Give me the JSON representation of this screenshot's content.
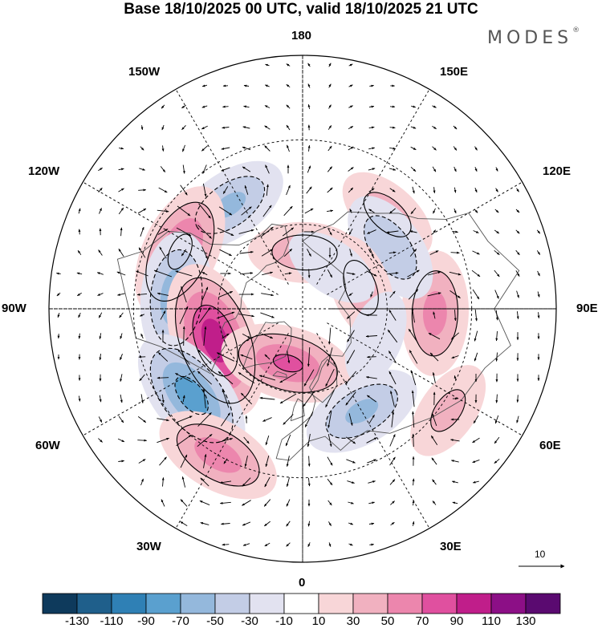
{
  "title": "Base 18/10/2025 00 UTC, valid 18/10/2025 21 UTC",
  "brand": {
    "name": "MODES",
    "mark": "®"
  },
  "longitude_labels": {
    "top": "180",
    "bottom": "0",
    "left": "90W",
    "right": "90E",
    "nw1": "150W",
    "nw2": "120W",
    "ne1": "150E",
    "ne2": "120E",
    "sw1": "60W",
    "sw2": "30W",
    "se1": "60E",
    "se2": "30E"
  },
  "vector_scale": {
    "label": "10"
  },
  "colorbar": {
    "colors": [
      "#0e3a5c",
      "#1f5f8b",
      "#2f80b5",
      "#5aa0cf",
      "#94b8dc",
      "#c3cde6",
      "#e2e2f0",
      "#ffffff",
      "#f8d6d8",
      "#f1b1c0",
      "#ec86ad",
      "#e0509f",
      "#c01e8a",
      "#8c0f86",
      "#5a0a70"
    ],
    "ticks": [
      "-130",
      "-110",
      "-90",
      "-70",
      "-50",
      "-30",
      "-10",
      "10",
      "30",
      "50",
      "70",
      "90",
      "110",
      "130"
    ]
  },
  "anomalies": [
    {
      "lon": 178,
      "lat": 70,
      "value": 45
    },
    {
      "lon": 138,
      "lat": 45,
      "value": 40
    },
    {
      "lon": -145,
      "lat": 45,
      "value": -55
    },
    {
      "lon": -115,
      "lat": 42,
      "value": 80
    },
    {
      "lon": -95,
      "lat": 45,
      "value": -70
    },
    {
      "lon": -70,
      "lat": 57,
      "value": 110
    },
    {
      "lon": -52,
      "lat": 40,
      "value": -85
    },
    {
      "lon": -30,
      "lat": 30,
      "value": 65
    },
    {
      "lon": -15,
      "lat": 70,
      "value": 75
    },
    {
      "lon": 30,
      "lat": 48,
      "value": -55
    },
    {
      "lon": 55,
      "lat": 27,
      "value": 35
    },
    {
      "lon": 88,
      "lat": 43,
      "value": 60
    },
    {
      "lon": 125,
      "lat": 52,
      "value": -50
    },
    {
      "lon": 110,
      "lat": 68,
      "value": 40
    },
    {
      "lon": 145,
      "lat": 72,
      "value": -30
    },
    {
      "lon": 68,
      "lat": 62,
      "value": -30
    }
  ]
}
